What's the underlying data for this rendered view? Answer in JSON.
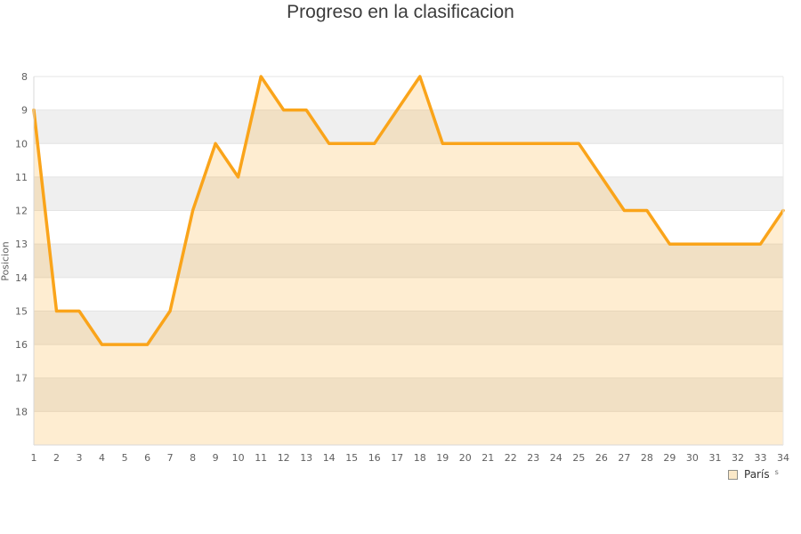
{
  "page": {
    "background": "#FFFFFF"
  },
  "chart_data": {
    "type": "area",
    "title": "Progreso en la clasificacion",
    "xlabel": "",
    "ylabel": "Posicion",
    "x": [
      1,
      2,
      3,
      4,
      5,
      6,
      7,
      8,
      9,
      10,
      11,
      12,
      13,
      14,
      15,
      16,
      17,
      18,
      19,
      20,
      21,
      22,
      23,
      24,
      25,
      26,
      27,
      28,
      29,
      30,
      31,
      32,
      33,
      34
    ],
    "series": [
      {
        "name": "París",
        "values": [
          9,
          15,
          15,
          16,
          16,
          16,
          15,
          12,
          10,
          11,
          8,
          9,
          9,
          10,
          10,
          10,
          9,
          8,
          10,
          10,
          10,
          10,
          10,
          10,
          10,
          11,
          12,
          12,
          13,
          13,
          13,
          13,
          13,
          12
        ]
      }
    ],
    "ylim": [
      8,
      19
    ],
    "y_inverted": true,
    "x_ticks": [
      "1",
      "2",
      "3",
      "4",
      "5",
      "6",
      "7",
      "8",
      "9",
      "10",
      "11",
      "12",
      "13",
      "14",
      "15",
      "16",
      "17",
      "18",
      "19",
      "20",
      "21",
      "22",
      "23",
      "24",
      "25",
      "26",
      "27",
      "28",
      "29",
      "30",
      "31",
      "32",
      "33",
      "34"
    ],
    "y_ticks": [
      "8",
      "9",
      "10",
      "11",
      "12",
      "13",
      "14",
      "15",
      "16",
      "17",
      "18"
    ],
    "grid": true,
    "bands_alternating": true,
    "legend_position": "bottom-right",
    "colors": {
      "line": "#FAA41A",
      "area_fill": "rgba(250,164,26,0.2)",
      "band_gray": "#EFEFEF",
      "band_white": "#FFFFFF",
      "gridline": "#E4E4E4",
      "axis_line": "#D8D8D8",
      "right_border": "#E8E8E8",
      "title_text": "#3C3C3C",
      "tick_text": "#606060",
      "legend_swatch_fill": "#FAE8C8",
      "legend_swatch_border": "#90908A"
    }
  },
  "legend": {
    "label": "París",
    "suffix": "s"
  }
}
